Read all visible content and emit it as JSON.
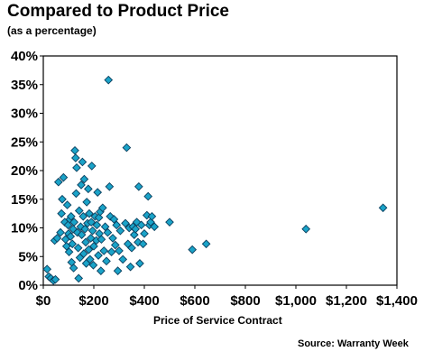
{
  "chart_data": {
    "type": "scatter",
    "title": "Compared to Product Price",
    "subtitle": "(as a percentage)",
    "xlabel": "Price of Service Contract",
    "ylabel": "",
    "source": "Source: Warranty Week",
    "xlim": [
      0,
      1400
    ],
    "ylim": [
      0,
      40
    ],
    "x_ticks": [
      0,
      200,
      400,
      600,
      800,
      1000,
      1200,
      1400
    ],
    "x_tick_labels": [
      "$0",
      "$200",
      "$400",
      "$600",
      "$800",
      "$1,000",
      "$1,200",
      "$1,400"
    ],
    "y_ticks": [
      0,
      5,
      10,
      15,
      20,
      25,
      30,
      35,
      40
    ],
    "y_tick_labels": [
      "0%",
      "5%",
      "10%",
      "15%",
      "20%",
      "25%",
      "30%",
      "35%",
      "40%"
    ],
    "grid": false,
    "marker_color": "#1aa3c8",
    "marker_edge": "#0b3f5e",
    "points": [
      [
        15,
        2.8
      ],
      [
        22,
        1.5
      ],
      [
        30,
        1.2
      ],
      [
        40,
        0.8
      ],
      [
        48,
        1.0
      ],
      [
        45,
        7.8
      ],
      [
        55,
        8.2
      ],
      [
        60,
        18.0
      ],
      [
        68,
        9.2
      ],
      [
        72,
        12.5
      ],
      [
        75,
        15.0
      ],
      [
        80,
        18.8
      ],
      [
        85,
        11.0
      ],
      [
        88,
        8.0
      ],
      [
        92,
        6.8
      ],
      [
        95,
        14.0
      ],
      [
        98,
        10.5
      ],
      [
        100,
        9.0
      ],
      [
        102,
        5.8
      ],
      [
        105,
        11.5
      ],
      [
        108,
        8.5
      ],
      [
        110,
        12.0
      ],
      [
        112,
        4.0
      ],
      [
        115,
        7.2
      ],
      [
        118,
        9.8
      ],
      [
        120,
        3.0
      ],
      [
        122,
        11.0
      ],
      [
        125,
        23.5
      ],
      [
        128,
        22.2
      ],
      [
        130,
        16.0
      ],
      [
        132,
        20.5
      ],
      [
        135,
        9.2
      ],
      [
        138,
        6.5
      ],
      [
        140,
        1.2
      ],
      [
        142,
        13.0
      ],
      [
        145,
        4.8
      ],
      [
        148,
        10.2
      ],
      [
        150,
        17.5
      ],
      [
        152,
        8.8
      ],
      [
        155,
        21.5
      ],
      [
        158,
        12.0
      ],
      [
        160,
        5.5
      ],
      [
        162,
        18.5
      ],
      [
        165,
        9.8
      ],
      [
        168,
        7.5
      ],
      [
        170,
        3.8
      ],
      [
        172,
        14.5
      ],
      [
        175,
        10.8
      ],
      [
        178,
        16.8
      ],
      [
        180,
        6.2
      ],
      [
        182,
        12.5
      ],
      [
        185,
        4.5
      ],
      [
        188,
        8.2
      ],
      [
        190,
        11.0
      ],
      [
        192,
        20.8
      ],
      [
        195,
        9.5
      ],
      [
        198,
        3.5
      ],
      [
        200,
        6.8
      ],
      [
        205,
        12.0
      ],
      [
        210,
        7.8
      ],
      [
        212,
        10.5
      ],
      [
        215,
        16.2
      ],
      [
        218,
        5.2
      ],
      [
        220,
        11.8
      ],
      [
        222,
        9.0
      ],
      [
        225,
        12.8
      ],
      [
        228,
        2.5
      ],
      [
        230,
        8.0
      ],
      [
        235,
        13.5
      ],
      [
        240,
        6.0
      ],
      [
        245,
        10.2
      ],
      [
        250,
        4.2
      ],
      [
        255,
        9.2
      ],
      [
        258,
        35.8
      ],
      [
        262,
        17.2
      ],
      [
        265,
        12.0
      ],
      [
        270,
        5.8
      ],
      [
        275,
        8.2
      ],
      [
        280,
        11.5
      ],
      [
        285,
        7.0
      ],
      [
        290,
        10.5
      ],
      [
        295,
        2.5
      ],
      [
        300,
        6.0
      ],
      [
        305,
        9.5
      ],
      [
        315,
        4.5
      ],
      [
        325,
        10.8
      ],
      [
        330,
        24.0
      ],
      [
        335,
        7.2
      ],
      [
        340,
        10.0
      ],
      [
        345,
        3.2
      ],
      [
        350,
        6.5
      ],
      [
        355,
        10.2
      ],
      [
        360,
        8.8
      ],
      [
        365,
        9.8
      ],
      [
        370,
        11.0
      ],
      [
        375,
        7.5
      ],
      [
        378,
        17.2
      ],
      [
        382,
        3.8
      ],
      [
        388,
        10.5
      ],
      [
        395,
        7.2
      ],
      [
        400,
        9.0
      ],
      [
        410,
        12.2
      ],
      [
        415,
        15.5
      ],
      [
        420,
        10.5
      ],
      [
        425,
        11.0
      ],
      [
        430,
        12.0
      ],
      [
        440,
        10.2
      ],
      [
        500,
        11.0
      ],
      [
        590,
        6.2
      ],
      [
        645,
        7.2
      ],
      [
        1040,
        9.8
      ],
      [
        1345,
        13.5
      ]
    ]
  }
}
